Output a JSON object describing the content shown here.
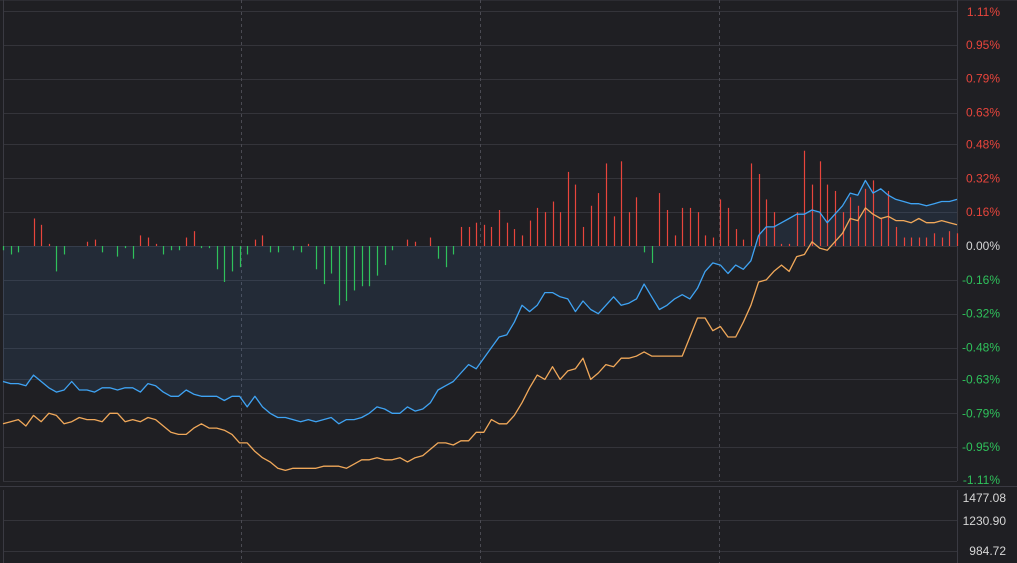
{
  "colors": {
    "background": "#1f1f23",
    "grid": "#34343a",
    "up": "#e8453c",
    "down": "#2fc15b",
    "blue_line": "#3fa3f3",
    "orange_line": "#f0a85a",
    "neutral_label": "#d6d6d6"
  },
  "chart_data": [
    {
      "type": "line",
      "title": "",
      "xlabel": "",
      "ylabel": "",
      "ylim": [
        -1.11,
        1.11
      ],
      "grid": true,
      "yticks": [
        {
          "label": "1.11%",
          "value": 1.11,
          "sign": "up"
        },
        {
          "label": "0.95%",
          "value": 0.95,
          "sign": "up"
        },
        {
          "label": "0.79%",
          "value": 0.79,
          "sign": "up"
        },
        {
          "label": "0.63%",
          "value": 0.63,
          "sign": "up"
        },
        {
          "label": "0.48%",
          "value": 0.48,
          "sign": "up"
        },
        {
          "label": "0.32%",
          "value": 0.32,
          "sign": "up"
        },
        {
          "label": "0.16%",
          "value": 0.16,
          "sign": "up"
        },
        {
          "label": "0.00%",
          "value": 0.0,
          "sign": "flat"
        },
        {
          "label": "-0.16%",
          "value": -0.16,
          "sign": "down"
        },
        {
          "label": "-0.32%",
          "value": -0.32,
          "sign": "down"
        },
        {
          "label": "-0.48%",
          "value": -0.48,
          "sign": "down"
        },
        {
          "label": "-0.63%",
          "value": -0.63,
          "sign": "down"
        },
        {
          "label": "-0.79%",
          "value": -0.79,
          "sign": "down"
        },
        {
          "label": "-0.95%",
          "value": -0.95,
          "sign": "down"
        },
        {
          "label": "-1.11%",
          "value": -1.11,
          "sign": "down"
        }
      ],
      "series": [
        {
          "color_key": "blue_line",
          "values": [
            -0.64,
            -0.65,
            -0.65,
            -0.66,
            -0.61,
            -0.64,
            -0.67,
            -0.69,
            -0.68,
            -0.64,
            -0.68,
            -0.68,
            -0.69,
            -0.67,
            -0.67,
            -0.68,
            -0.67,
            -0.67,
            -0.69,
            -0.65,
            -0.66,
            -0.69,
            -0.71,
            -0.71,
            -0.68,
            -0.7,
            -0.71,
            -0.71,
            -0.71,
            -0.73,
            -0.71,
            -0.71,
            -0.76,
            -0.71,
            -0.76,
            -0.79,
            -0.81,
            -0.81,
            -0.82,
            -0.83,
            -0.82,
            -0.83,
            -0.82,
            -0.81,
            -0.84,
            -0.82,
            -0.82,
            -0.81,
            -0.79,
            -0.76,
            -0.77,
            -0.79,
            -0.79,
            -0.76,
            -0.78,
            -0.77,
            -0.74,
            -0.68,
            -0.66,
            -0.64,
            -0.6,
            -0.56,
            -0.58,
            -0.53,
            -0.48,
            -0.43,
            -0.42,
            -0.36,
            -0.28,
            -0.31,
            -0.28,
            -0.22,
            -0.22,
            -0.24,
            -0.25,
            -0.31,
            -0.26,
            -0.3,
            -0.32,
            -0.28,
            -0.24,
            -0.28,
            -0.27,
            -0.25,
            -0.18,
            -0.24,
            -0.3,
            -0.28,
            -0.25,
            -0.23,
            -0.25,
            -0.2,
            -0.12,
            -0.08,
            -0.09,
            -0.13,
            -0.09,
            -0.11,
            -0.07,
            0.05,
            0.09,
            0.09,
            0.11,
            0.13,
            0.15,
            0.15,
            0.17,
            0.16,
            0.11,
            0.15,
            0.19,
            0.25,
            0.24,
            0.31,
            0.25,
            0.27,
            0.24,
            0.22,
            0.21,
            0.2,
            0.2,
            0.19,
            0.2,
            0.21,
            0.21,
            0.22
          ]
        },
        {
          "color_key": "orange_line",
          "values": [
            -0.84,
            -0.83,
            -0.82,
            -0.85,
            -0.8,
            -0.83,
            -0.79,
            -0.8,
            -0.84,
            -0.83,
            -0.81,
            -0.82,
            -0.82,
            -0.83,
            -0.79,
            -0.79,
            -0.83,
            -0.82,
            -0.83,
            -0.81,
            -0.82,
            -0.85,
            -0.88,
            -0.89,
            -0.89,
            -0.86,
            -0.84,
            -0.86,
            -0.86,
            -0.87,
            -0.89,
            -0.93,
            -0.93,
            -0.97,
            -1.0,
            -1.02,
            -1.05,
            -1.06,
            -1.05,
            -1.05,
            -1.05,
            -1.05,
            -1.04,
            -1.04,
            -1.04,
            -1.05,
            -1.03,
            -1.01,
            -1.01,
            -1.0,
            -1.01,
            -1.01,
            -1.0,
            -1.02,
            -1.0,
            -0.99,
            -0.96,
            -0.93,
            -0.93,
            -0.94,
            -0.92,
            -0.92,
            -0.88,
            -0.88,
            -0.82,
            -0.84,
            -0.84,
            -0.8,
            -0.74,
            -0.67,
            -0.61,
            -0.63,
            -0.57,
            -0.63,
            -0.59,
            -0.58,
            -0.53,
            -0.63,
            -0.6,
            -0.56,
            -0.57,
            -0.53,
            -0.53,
            -0.52,
            -0.5,
            -0.52,
            -0.52,
            -0.52,
            -0.52,
            -0.52,
            -0.43,
            -0.34,
            -0.34,
            -0.4,
            -0.38,
            -0.43,
            -0.43,
            -0.36,
            -0.28,
            -0.17,
            -0.16,
            -0.12,
            -0.09,
            -0.12,
            -0.05,
            -0.04,
            0.02,
            -0.01,
            -0.02,
            0.02,
            0.06,
            0.13,
            0.12,
            0.18,
            0.15,
            0.13,
            0.14,
            0.12,
            0.12,
            0.11,
            0.13,
            0.11,
            0.11,
            0.12,
            0.11,
            0.1
          ]
        }
      ],
      "bars": [
        -0.02,
        -0.04,
        -0.03,
        0.0,
        0.13,
        0.1,
        0.01,
        -0.12,
        -0.04,
        0.0,
        0.0,
        0.02,
        0.03,
        -0.03,
        0.0,
        -0.05,
        -0.01,
        -0.06,
        0.05,
        0.04,
        0.01,
        -0.04,
        -0.02,
        -0.02,
        0.04,
        0.07,
        -0.01,
        -0.01,
        -0.11,
        -0.17,
        -0.12,
        -0.1,
        -0.04,
        0.03,
        0.05,
        -0.03,
        -0.03,
        0.0,
        -0.02,
        -0.03,
        0.01,
        -0.11,
        -0.18,
        -0.13,
        -0.28,
        -0.26,
        -0.21,
        -0.19,
        -0.19,
        -0.14,
        -0.09,
        -0.02,
        0.0,
        0.03,
        0.02,
        0.0,
        0.04,
        -0.06,
        -0.1,
        -0.04,
        0.09,
        0.09,
        0.11,
        0.1,
        0.09,
        0.17,
        0.11,
        0.08,
        0.05,
        0.12,
        0.18,
        0.16,
        0.21,
        0.16,
        0.35,
        0.29,
        0.09,
        0.19,
        0.25,
        0.39,
        0.14,
        0.4,
        0.16,
        0.23,
        -0.03,
        -0.08,
        0.25,
        0.17,
        0.05,
        0.18,
        0.18,
        0.16,
        0.05,
        0.04,
        0.22,
        0.18,
        0.08,
        0.03,
        0.39,
        0.34,
        0.22,
        0.16,
        0.01,
        0.01,
        0.16,
        0.45,
        0.29,
        0.4,
        0.29,
        0.26,
        0.16,
        0.23,
        0.19,
        0.27,
        0.31,
        0.13,
        0.26,
        0.09,
        0.04,
        0.04,
        0.04,
        0.04,
        0.06,
        0.04,
        0.07,
        0.06
      ]
    },
    {
      "type": "bar",
      "title": "",
      "yticks": [
        {
          "label": "1477.08",
          "value": 1477.08
        },
        {
          "label": "1230.90",
          "value": 1230.9
        },
        {
          "label": "984.72",
          "value": 984.72
        }
      ],
      "values": []
    }
  ]
}
